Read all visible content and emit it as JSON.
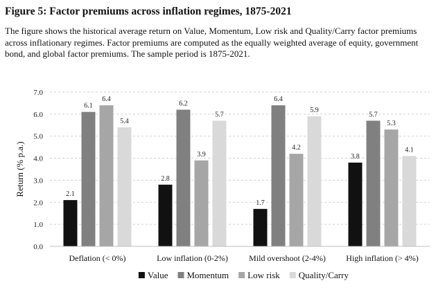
{
  "figure": {
    "title": "Figure 5: Factor premiums across inflation regimes, 1875-2021",
    "caption": "The figure shows the historical average return on Value, Momentum, Low risk and Quality/Carry factor premiums across inflationary regimes. Factor premiums are computed as the equally weighted average of equity, government bond, and global factor premiums. The sample period is 1875-2021."
  },
  "chart_data": {
    "type": "bar",
    "title": "",
    "xlabel": "",
    "ylabel": "Return (% p.a.)",
    "ylim": [
      0,
      7
    ],
    "yticks": [
      "0.0",
      "1.0",
      "2.0",
      "3.0",
      "4.0",
      "5.0",
      "6.0",
      "7.0"
    ],
    "grid": "horizontal dashed",
    "legend_position": "bottom",
    "categories": [
      "Deflation (< 0%)",
      "Low inflation (0-2%)",
      "Mild overshoot (2-4%)",
      "High inflation (> 4%)"
    ],
    "series": [
      {
        "name": "Value",
        "color": "#111111",
        "values": [
          2.1,
          2.8,
          1.7,
          3.8
        ],
        "labels": [
          "2.1",
          "2.8",
          "1.7",
          "3.8"
        ]
      },
      {
        "name": "Momentum",
        "color": "#808080",
        "values": [
          6.1,
          6.2,
          6.4,
          5.7
        ],
        "labels": [
          "6.1",
          "6.2",
          "6.4",
          "5.7"
        ]
      },
      {
        "name": "Low risk",
        "color": "#a6a6a6",
        "values": [
          6.4,
          3.9,
          4.2,
          5.3
        ],
        "labels": [
          "6.4",
          "3.9",
          "4.2",
          "5.3"
        ]
      },
      {
        "name": "Quality/Carry",
        "color": "#d9d9d9",
        "values": [
          5.4,
          5.7,
          5.9,
          4.1
        ],
        "labels": [
          "5.4",
          "5.7",
          "5.9",
          "4.1"
        ]
      }
    ]
  }
}
